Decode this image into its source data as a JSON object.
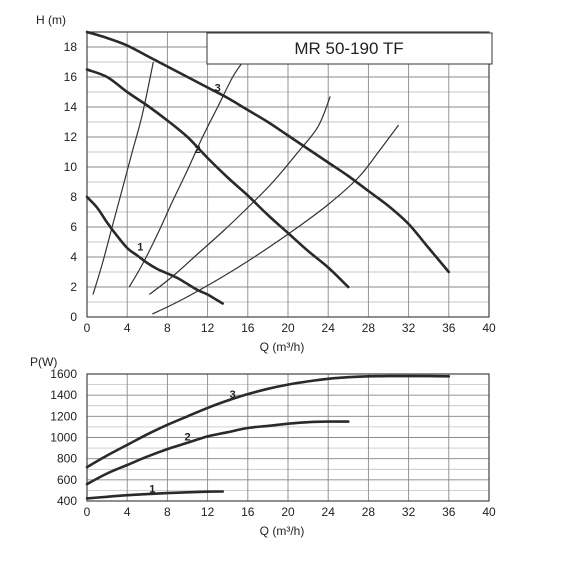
{
  "title": "MR 50-190 TF",
  "chart_data": [
    {
      "type": "line",
      "ylabel": "H (m)",
      "xlabel": "Q (m³/h)",
      "xlim": [
        0,
        40
      ],
      "ylim": [
        0,
        19
      ],
      "xticks": [
        0,
        4,
        8,
        12,
        16,
        20,
        24,
        28,
        32,
        36,
        40
      ],
      "yticks": [
        0,
        2,
        4,
        6,
        8,
        10,
        12,
        14,
        16,
        18
      ],
      "grid": true,
      "series": [
        {
          "name": "1",
          "label_at": [
            5.3,
            4.7
          ],
          "points": [
            [
              0,
              8
            ],
            [
              1,
              7.3
            ],
            [
              2,
              6.3
            ],
            [
              3,
              5.4
            ],
            [
              4,
              4.6
            ],
            [
              5,
              4.1
            ],
            [
              6,
              3.6
            ],
            [
              7,
              3.2
            ],
            [
              8,
              2.9
            ],
            [
              9,
              2.6
            ],
            [
              10,
              2.2
            ],
            [
              11,
              1.8
            ],
            [
              12,
              1.5
            ],
            [
              13,
              1.1
            ],
            [
              13.5,
              0.9
            ]
          ]
        },
        {
          "name": "2",
          "label_at": [
            11,
            11.2
          ],
          "points": [
            [
              0,
              16.5
            ],
            [
              2,
              16
            ],
            [
              4,
              15
            ],
            [
              6,
              14.1
            ],
            [
              8,
              13.1
            ],
            [
              10,
              12
            ],
            [
              12,
              10.6
            ],
            [
              14,
              9.3
            ],
            [
              16,
              8.1
            ],
            [
              18,
              6.8
            ],
            [
              20,
              5.6
            ],
            [
              22,
              4.4
            ],
            [
              24,
              3.3
            ],
            [
              26,
              2
            ]
          ]
        },
        {
          "name": "3",
          "label_at": [
            13,
            15.3
          ],
          "points": [
            [
              0,
              19
            ],
            [
              2,
              18.6
            ],
            [
              4,
              18.1
            ],
            [
              6,
              17.4
            ],
            [
              8,
              16.7
            ],
            [
              10,
              16
            ],
            [
              12,
              15.3
            ],
            [
              14,
              14.6
            ],
            [
              16,
              13.8
            ],
            [
              18,
              13
            ],
            [
              20,
              12.1
            ],
            [
              22,
              11.2
            ],
            [
              24,
              10.3
            ],
            [
              26,
              9.4
            ],
            [
              28,
              8.4
            ],
            [
              30,
              7.4
            ],
            [
              32,
              6.2
            ],
            [
              34,
              4.6
            ],
            [
              36,
              3
            ]
          ]
        }
      ],
      "system_curves": [
        [
          [
            0.6,
            1.5
          ],
          [
            1.5,
            3.5
          ],
          [
            2.5,
            6
          ],
          [
            3.5,
            8.5
          ],
          [
            4.5,
            11
          ],
          [
            5.5,
            13.5
          ],
          [
            6.6,
            17
          ]
        ],
        [
          [
            4.2,
            2
          ],
          [
            5.5,
            3.5
          ],
          [
            7,
            5.5
          ],
          [
            8.5,
            7.7
          ],
          [
            10,
            9.8
          ],
          [
            11.5,
            12
          ],
          [
            13,
            14
          ],
          [
            14.5,
            16
          ],
          [
            15.5,
            17
          ]
        ],
        [
          [
            6.2,
            1.5
          ],
          [
            8.5,
            2.7
          ],
          [
            11,
            4.2
          ],
          [
            13.5,
            5.7
          ],
          [
            16,
            7.3
          ],
          [
            18.5,
            9
          ],
          [
            21,
            11
          ],
          [
            23,
            12.7
          ],
          [
            24.2,
            14.7
          ]
        ],
        [
          [
            6.5,
            0.2
          ],
          [
            9,
            1
          ],
          [
            12,
            2.1
          ],
          [
            15,
            3.3
          ],
          [
            18,
            4.6
          ],
          [
            21,
            6
          ],
          [
            24,
            7.5
          ],
          [
            27,
            9.3
          ],
          [
            29,
            11
          ],
          [
            31,
            12.8
          ]
        ]
      ]
    },
    {
      "type": "line",
      "ylabel": "P(W)",
      "xlabel": "Q (m³/h)",
      "xlim": [
        0,
        40
      ],
      "ylim": [
        400,
        1600
      ],
      "xticks": [
        0,
        4,
        8,
        12,
        16,
        20,
        24,
        28,
        32,
        36,
        40
      ],
      "yticks": [
        400,
        600,
        800,
        1000,
        1200,
        1400,
        1600
      ],
      "grid": true,
      "series": [
        {
          "name": "1",
          "label_at": [
            6.5,
            520
          ],
          "points": [
            [
              0,
              425
            ],
            [
              2,
              440
            ],
            [
              4,
              455
            ],
            [
              6,
              465
            ],
            [
              8,
              475
            ],
            [
              10,
              482
            ],
            [
              12,
              488
            ],
            [
              13.5,
              490
            ]
          ]
        },
        {
          "name": "2",
          "label_at": [
            10,
            1010
          ],
          "points": [
            [
              0,
              560
            ],
            [
              2,
              660
            ],
            [
              4,
              740
            ],
            [
              6,
              820
            ],
            [
              8,
              890
            ],
            [
              10,
              950
            ],
            [
              12,
              1010
            ],
            [
              14,
              1050
            ],
            [
              16,
              1090
            ],
            [
              18,
              1110
            ],
            [
              20,
              1130
            ],
            [
              22,
              1145
            ],
            [
              24,
              1150
            ],
            [
              26,
              1150
            ]
          ]
        },
        {
          "name": "3",
          "label_at": [
            14.5,
            1410
          ],
          "points": [
            [
              0,
              720
            ],
            [
              2,
              830
            ],
            [
              4,
              930
            ],
            [
              6,
              1030
            ],
            [
              8,
              1120
            ],
            [
              10,
              1200
            ],
            [
              12,
              1280
            ],
            [
              14,
              1350
            ],
            [
              16,
              1410
            ],
            [
              18,
              1460
            ],
            [
              20,
              1500
            ],
            [
              22,
              1530
            ],
            [
              24,
              1555
            ],
            [
              26,
              1570
            ],
            [
              28,
              1578
            ],
            [
              30,
              1580
            ],
            [
              32,
              1580
            ],
            [
              34,
              1580
            ],
            [
              36,
              1578
            ]
          ]
        }
      ]
    }
  ]
}
